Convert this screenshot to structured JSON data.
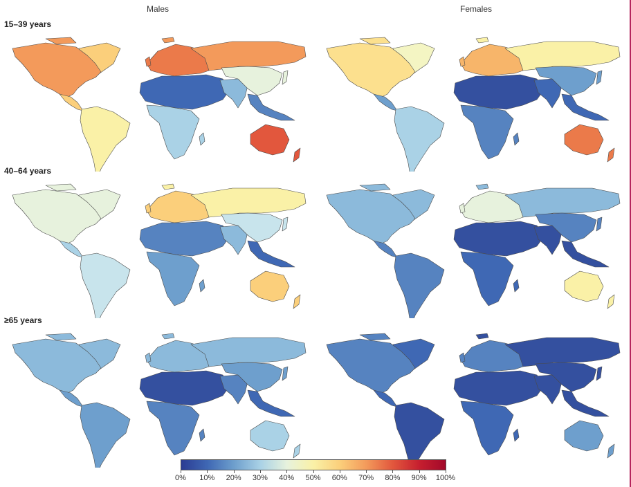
{
  "columns": {
    "males": "Males",
    "females": "Females"
  },
  "rows": [
    "15–39 years",
    "40–64 years",
    "≥65 years"
  ],
  "colors": {
    "c0": "#2b3c93",
    "c5": "#34509f",
    "c10": "#3f68b4",
    "c15": "#5683c0",
    "c20": "#6e9fcd",
    "c25": "#8cbadb",
    "c30": "#aad2e6",
    "c35": "#c8e4ec",
    "c40": "#e7f2dd",
    "c45": "#f4f5c3",
    "c50": "#faf1a7",
    "c55": "#fce08e",
    "c60": "#fbcf7b",
    "c65": "#f7b56a",
    "c70": "#f39a5b",
    "c75": "#eb7a4a",
    "c80": "#e2573d",
    "c90": "#c61f2f",
    "c100": "#a3092a"
  },
  "maps": [
    {
      "id": "m-15-39-males",
      "na": "c70",
      "ca": "c60",
      "sa": "c50",
      "ssa": "c30",
      "eu": "c75",
      "ru": "c70",
      "mena": "c10",
      "sas": "c25",
      "eas": "c40",
      "sea": "c15",
      "oc": "c80",
      "gl": "c60"
    },
    {
      "id": "m-15-39-females",
      "na": "c55",
      "ca": "c20",
      "sa": "c30",
      "ssa": "c15",
      "eu": "c65",
      "ru": "c50",
      "mena": "c5",
      "sas": "c10",
      "eas": "c20",
      "sea": "c10",
      "oc": "c75",
      "gl": "c45"
    },
    {
      "id": "m-40-64-males",
      "na": "c40",
      "ca": "c30",
      "sa": "c35",
      "ssa": "c20",
      "eu": "c60",
      "ru": "c50",
      "mena": "c15",
      "sas": "c25",
      "eas": "c35",
      "sea": "c10",
      "oc": "c60",
      "gl": "c40"
    },
    {
      "id": "m-40-64-females",
      "na": "c25",
      "ca": "c15",
      "sa": "c15",
      "ssa": "c10",
      "eu": "c40",
      "ru": "c25",
      "mena": "c5",
      "sas": "c5",
      "eas": "c15",
      "sea": "c5",
      "oc": "c50",
      "gl": "c25"
    },
    {
      "id": "m-65-males",
      "na": "c25",
      "ca": "c20",
      "sa": "c20",
      "ssa": "c15",
      "eu": "c25",
      "ru": "c25",
      "mena": "c5",
      "sas": "c15",
      "eas": "c20",
      "sea": "c10",
      "oc": "c30",
      "gl": "c25"
    },
    {
      "id": "m-65-females",
      "na": "c15",
      "ca": "c10",
      "sa": "c5",
      "ssa": "c10",
      "eu": "c15",
      "ru": "c5",
      "mena": "c5",
      "sas": "c5",
      "eas": "c5",
      "sea": "c5",
      "oc": "c20",
      "gl": "c10"
    }
  ],
  "legend": {
    "ticks": [
      "0%",
      "10%",
      "20%",
      "30%",
      "40%",
      "50%",
      "60%",
      "70%",
      "80%",
      "90%",
      "100%"
    ],
    "values": [
      0,
      10,
      20,
      30,
      40,
      50,
      60,
      70,
      80,
      90,
      100
    ]
  }
}
